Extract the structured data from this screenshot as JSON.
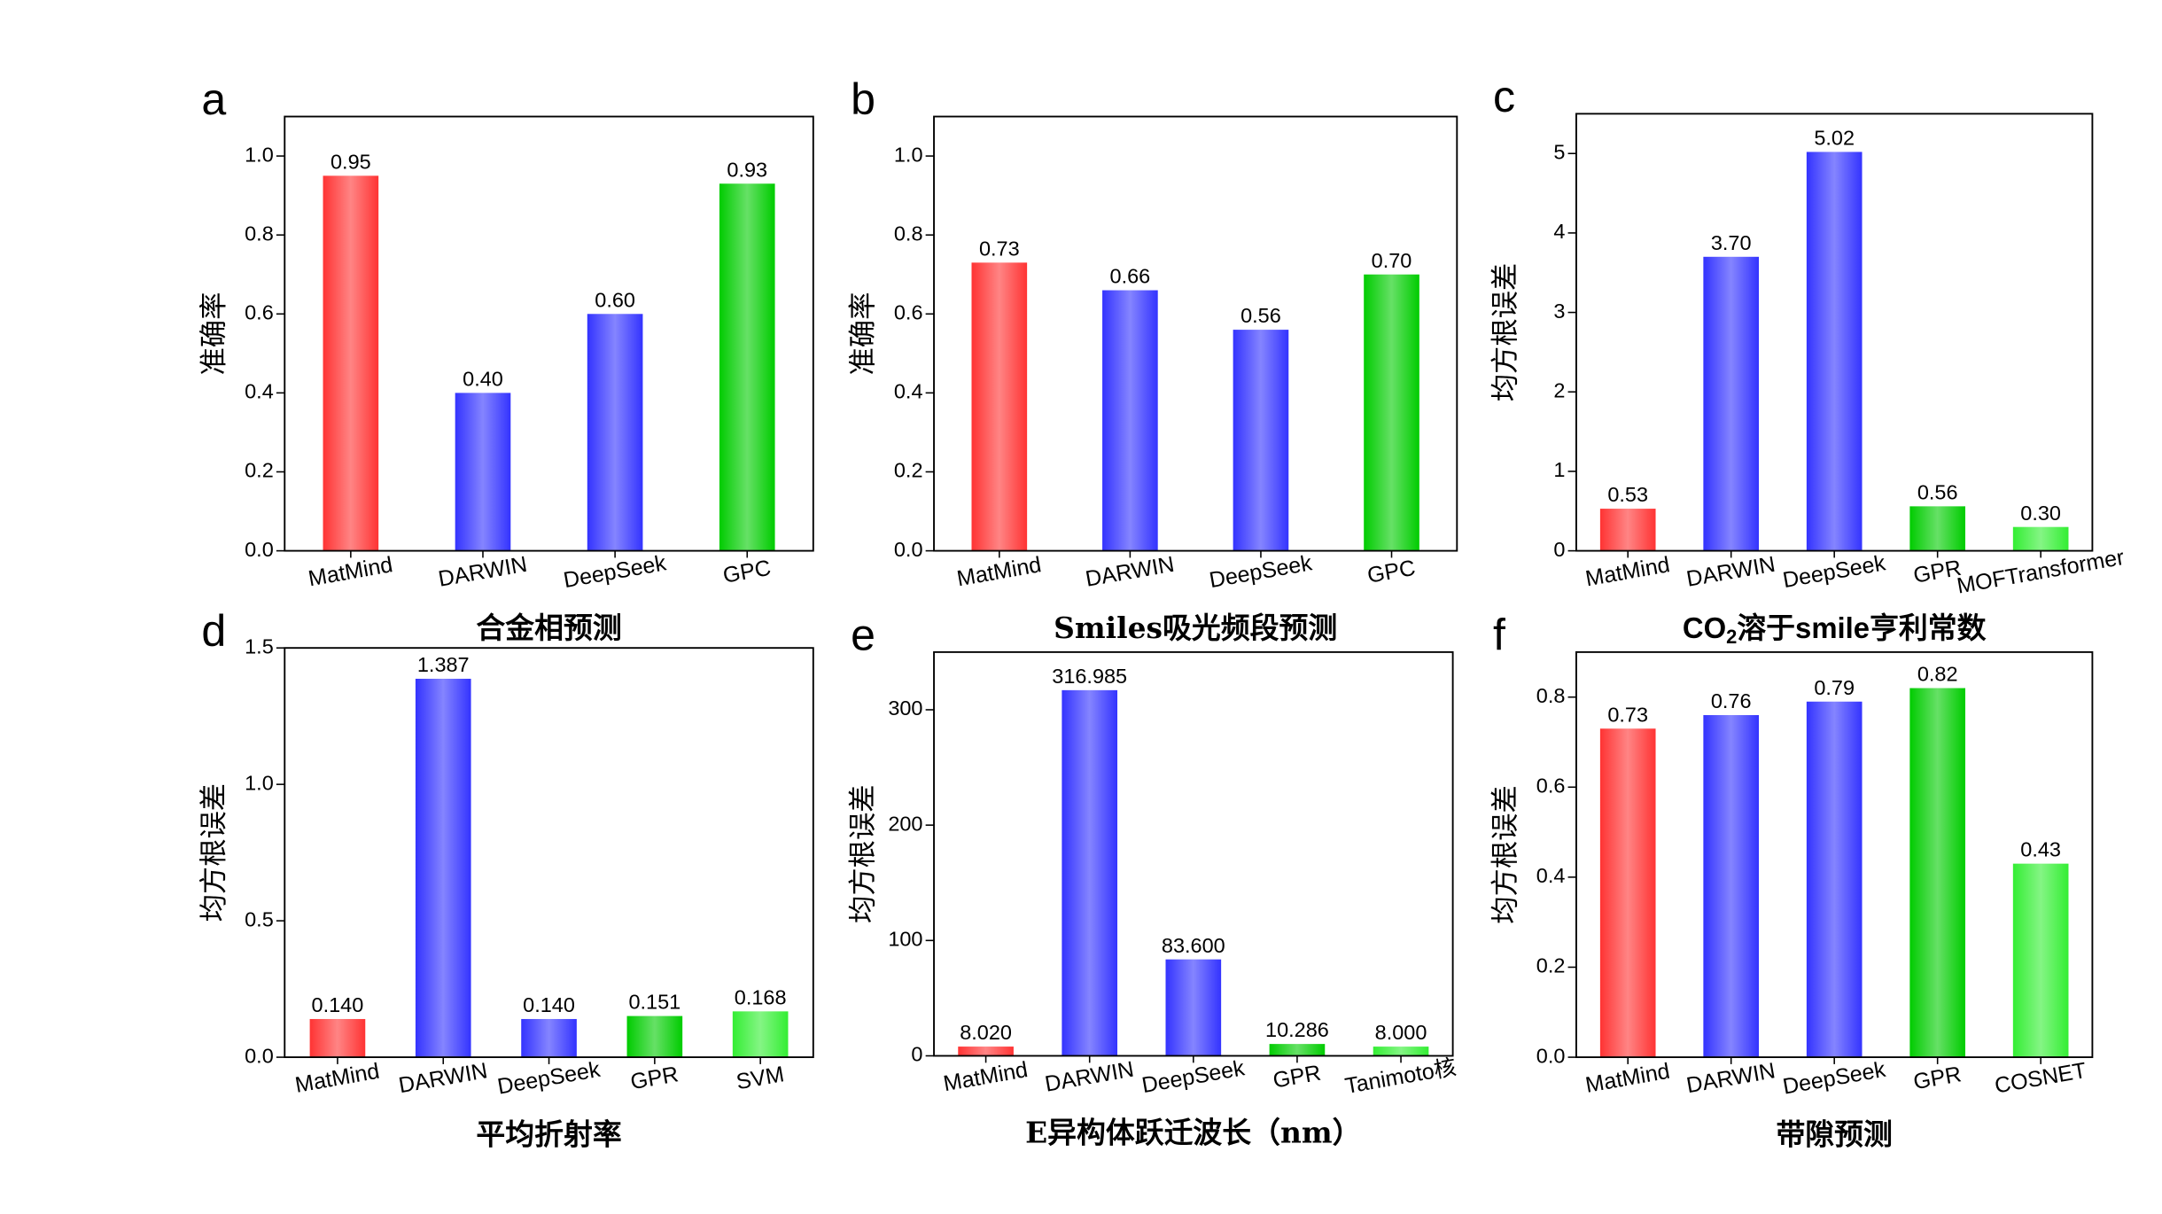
{
  "chart_data": [
    {
      "type": "bar",
      "panel": "a",
      "xlabel": "合金相预测",
      "ylabel": "准确率",
      "categories": [
        "MatMind",
        "DARWIN",
        "DeepSeek",
        "GPC"
      ],
      "values": [
        0.95,
        0.4,
        0.6,
        0.93
      ],
      "value_labels": [
        "0.95",
        "0.40",
        "0.60",
        "0.93"
      ],
      "colors": [
        "#ff3333",
        "#3333ff",
        "#3333ff",
        "#00cc00"
      ],
      "ylim": [
        0,
        1.1
      ],
      "yticks": [
        {
          "value": 0,
          "label": "0.0"
        },
        0.2,
        0.4,
        0.6,
        0.8,
        {
          "value": 1,
          "label": "1.0"
        }
      ]
    },
    {
      "type": "bar",
      "panel": "b",
      "xlabel": "Smiles吸光频段预测",
      "ylabel": "准确率",
      "categories": [
        "MatMind",
        "DARWIN",
        "DeepSeek",
        "GPC"
      ],
      "values": [
        0.73,
        0.66,
        0.56,
        0.7
      ],
      "value_labels": [
        "0.73",
        "0.66",
        "0.56",
        "0.70"
      ],
      "colors": [
        "#ff3333",
        "#3333ff",
        "#3333ff",
        "#00cc00"
      ],
      "ylim": [
        0,
        1.1
      ],
      "yticks": [
        {
          "value": 0,
          "label": "0.0"
        },
        0.2,
        0.4,
        0.6,
        0.8,
        {
          "value": 1,
          "label": "1.0"
        }
      ]
    },
    {
      "type": "bar",
      "panel": "c",
      "xlabel": [
        "CO",
        "2",
        "溶于smile亨利常数"
      ],
      "ylabel": "均方根误差",
      "categories": [
        "MatMind",
        "DARWIN",
        "DeepSeek",
        "GPR",
        "MOFTransformer"
      ],
      "values": [
        0.53,
        3.7,
        5.02,
        0.56,
        0.3
      ],
      "value_labels": [
        "0.53",
        "3.70",
        "5.02",
        "0.56",
        "0.30"
      ],
      "colors": [
        "#ff3333",
        "#3333ff",
        "#3333ff",
        "#00cc00",
        "#33ee33"
      ],
      "ylim": [
        0,
        5.5
      ],
      "yticks": [
        0,
        1,
        2,
        3,
        4,
        5
      ]
    },
    {
      "type": "bar",
      "panel": "d",
      "xlabel": "平均折射率",
      "ylabel": "均方根误差",
      "categories": [
        "MatMind",
        "DARWIN",
        "DeepSeek",
        "GPR",
        "SVM"
      ],
      "values": [
        0.14,
        1.387,
        0.14,
        0.151,
        0.168
      ],
      "value_labels": [
        "0.140",
        "1.387",
        "0.140",
        "0.151",
        "0.168"
      ],
      "colors": [
        "#ff3333",
        "#3333ff",
        "#3333ff",
        "#00cc00",
        "#33ee33"
      ],
      "ylim": [
        0,
        1.5
      ],
      "yticks": [
        {
          "value": 0,
          "label": "0.0"
        },
        0.5,
        {
          "value": 1,
          "label": "1.0"
        },
        1.5
      ]
    },
    {
      "type": "bar",
      "panel": "e",
      "xlabel": "E异构体跃迁波长（nm）",
      "ylabel": "均方根误差",
      "categories": [
        "MatMind",
        "DARWIN",
        "DeepSeek",
        "GPR",
        "Tanimoto核"
      ],
      "values": [
        8.02,
        316.985,
        83.6,
        10.286,
        8.0
      ],
      "value_labels": [
        "8.020",
        "316.985",
        "83.600",
        "10.286",
        "8.000"
      ],
      "colors": [
        "#ff3333",
        "#3333ff",
        "#3333ff",
        "#00cc00",
        "#33ee33"
      ],
      "ylim": [
        0,
        350
      ],
      "yticks": [
        0,
        100,
        200,
        300
      ]
    },
    {
      "type": "bar",
      "panel": "f",
      "xlabel": "带隙预测",
      "ylabel": "均方根误差",
      "categories": [
        "MatMind",
        "DARWIN",
        "DeepSeek",
        "GPR",
        "COSNET"
      ],
      "values": [
        0.73,
        0.76,
        0.79,
        0.82,
        0.43
      ],
      "value_labels": [
        "0.73",
        "0.76",
        "0.79",
        "0.82",
        "0.43"
      ],
      "colors": [
        "#ff3333",
        "#3333ff",
        "#3333ff",
        "#00cc00",
        "#33ee33"
      ],
      "ylim": [
        0,
        0.9
      ],
      "yticks": [
        {
          "value": 0,
          "label": "0.0"
        },
        0.2,
        0.4,
        0.6,
        0.8
      ]
    }
  ]
}
